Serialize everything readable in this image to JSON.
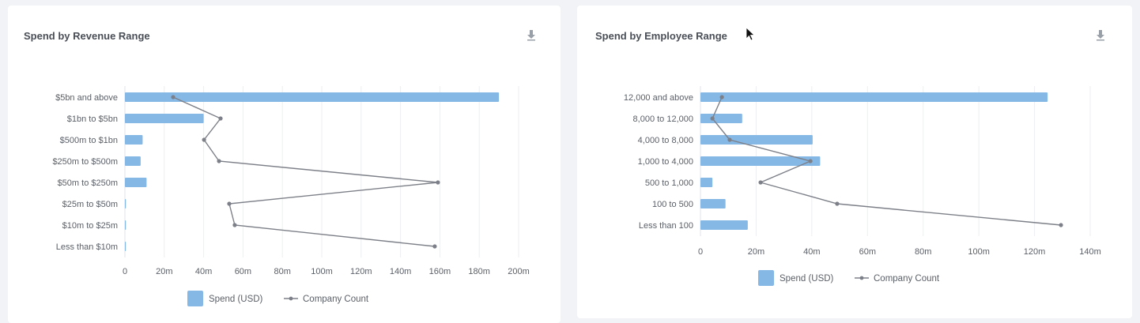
{
  "colors": {
    "bar": "#86b8e6",
    "line": "#7d8088",
    "grid": "#eceef1",
    "text": "#4a4f57",
    "axis_text": "#5b6068"
  },
  "icons": {
    "download": "download-icon",
    "cursor": "mouse-pointer-icon"
  },
  "chart_data": [
    {
      "type": "bar",
      "orientation": "horizontal",
      "title": "Spend by Revenue Range",
      "categories": [
        "$5bn and above",
        "$1bn to $5bn",
        "$500m to $1bn",
        "$250m to $500m",
        "$50m to $250m",
        "$25m to $50m",
        "$10m to $25m",
        "Less than $10m"
      ],
      "series": [
        {
          "name": "Spend (USD)",
          "kind": "bar",
          "values": [
            190,
            40,
            9,
            8,
            11,
            0.5,
            0.5,
            0.3
          ]
        },
        {
          "name": "Company Count",
          "kind": "line",
          "values": [
            24.5,
            48.6,
            40.2,
            47.8,
            159,
            53,
            55.8,
            157.4
          ]
        }
      ],
      "xlim": [
        0,
        200
      ],
      "xticks": [
        "0",
        "20m",
        "40m",
        "60m",
        "80m",
        "100m",
        "120m",
        "140m",
        "160m",
        "180m",
        "200m"
      ],
      "xlabel": "",
      "ylabel": "",
      "grid": true,
      "legend": "bottom"
    },
    {
      "type": "bar",
      "orientation": "horizontal",
      "title": "Spend by Employee Range",
      "categories": [
        "12,000 and above",
        "8,000 to 12,000",
        "4,000 to 8,000",
        "1,000 to 4,000",
        "500 to 1,000",
        "100 to 500",
        "Less than 100"
      ],
      "series": [
        {
          "name": "Spend (USD)",
          "kind": "bar",
          "values": [
            124.7,
            15,
            40.3,
            43,
            4.3,
            9,
            17
          ]
        },
        {
          "name": "Company Count",
          "kind": "line",
          "values": [
            7.7,
            4.3,
            10.5,
            39.5,
            21.6,
            49.1,
            129.5
          ]
        }
      ],
      "xlim": [
        0,
        140
      ],
      "xticks": [
        "0",
        "20m",
        "40m",
        "60m",
        "80m",
        "100m",
        "120m",
        "140m"
      ],
      "xlabel": "",
      "ylabel": "",
      "grid": true,
      "legend": "bottom"
    }
  ]
}
